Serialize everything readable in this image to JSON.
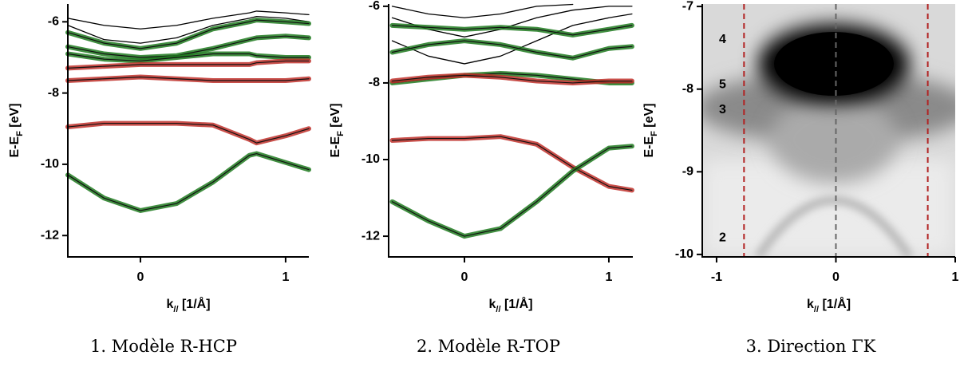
{
  "chart_data": [
    {
      "type": "line",
      "caption": "1. Modèle R-HCP",
      "xlabel": {
        "text": "k",
        "sub": "//",
        "unit": " [1/Å]"
      },
      "ylabel": {
        "text": "E-E",
        "sub": "F",
        "unit": " [eV]"
      },
      "xlim": [
        -0.5,
        1.16
      ],
      "ylim": [
        -12.6,
        -5.5
      ],
      "xticks": [
        0,
        1
      ],
      "yticks": [
        -12,
        -10,
        -8,
        -6
      ],
      "x": [
        -0.5,
        -0.25,
        0,
        0.25,
        0.5,
        0.75,
        0.8,
        1,
        1.16
      ],
      "series": [
        {
          "color": "#000000",
          "style": "thin",
          "values": [
            -5.9,
            -6.1,
            -6.2,
            -6.1,
            -5.9,
            -5.75,
            -5.7,
            -5.75,
            -5.8
          ]
        },
        {
          "color": "#000000",
          "style": "thin",
          "values": [
            -6.1,
            -6.5,
            -6.6,
            -6.45,
            -6.1,
            -5.9,
            -5.85,
            -5.9,
            -6.0
          ]
        },
        {
          "color": "#1e7a1e",
          "style": "thick",
          "values": [
            -6.3,
            -6.6,
            -6.75,
            -6.6,
            -6.2,
            -6.0,
            -5.95,
            -6.0,
            -6.05
          ]
        },
        {
          "color": "#1e7a1e",
          "style": "thick",
          "values": [
            -6.7,
            -6.9,
            -7.0,
            -6.95,
            -6.75,
            -6.5,
            -6.45,
            -6.4,
            -6.45
          ]
        },
        {
          "color": "#1e7a1e",
          "style": "thick",
          "values": [
            -6.9,
            -7.05,
            -7.1,
            -7.0,
            -6.9,
            -6.9,
            -6.95,
            -7.0,
            -7.0
          ]
        },
        {
          "color": "#c0302a",
          "style": "thick",
          "values": [
            -7.3,
            -7.25,
            -7.2,
            -7.2,
            -7.2,
            -7.2,
            -7.15,
            -7.1,
            -7.1
          ]
        },
        {
          "color": "#c0302a",
          "style": "thick",
          "values": [
            -7.65,
            -7.6,
            -7.55,
            -7.6,
            -7.65,
            -7.65,
            -7.65,
            -7.65,
            -7.6
          ]
        },
        {
          "color": "#c0302a",
          "style": "thick",
          "values": [
            -8.95,
            -8.85,
            -8.85,
            -8.85,
            -8.9,
            -9.3,
            -9.4,
            -9.2,
            -9.0
          ]
        },
        {
          "color": "#1e7a1e",
          "style": "thick",
          "values": [
            -10.3,
            -10.95,
            -11.3,
            -11.1,
            -10.5,
            -9.75,
            -9.7,
            -9.95,
            -10.15
          ]
        }
      ]
    },
    {
      "type": "line",
      "caption": "2. Modèle R-TOP",
      "xlabel": {
        "text": "k",
        "sub": "//",
        "unit": " [1/Å]"
      },
      "ylabel": {
        "text": "E-E",
        "sub": "F",
        "unit": " [eV]"
      },
      "xlim": [
        -0.525,
        1.166
      ],
      "ylim": [
        -12.54,
        -5.94
      ],
      "xticks": [
        0,
        1
      ],
      "yticks": [
        -12,
        -10,
        -8,
        -6
      ],
      "x": [
        -0.5,
        -0.25,
        0,
        0.25,
        0.5,
        0.75,
        1,
        1.16
      ],
      "series": [
        {
          "color": "#000000",
          "style": "thin",
          "values": [
            -6.0,
            -6.2,
            -6.3,
            -6.2,
            -6.0,
            -5.95,
            null,
            null
          ]
        },
        {
          "color": "#000000",
          "style": "thin",
          "values": [
            -6.3,
            -6.6,
            -6.8,
            -6.6,
            -6.3,
            -6.1,
            -6.0,
            -6.0
          ]
        },
        {
          "color": "#000000",
          "style": "thin",
          "values": [
            -6.9,
            -7.3,
            -7.5,
            -7.3,
            -6.9,
            -6.5,
            -6.3,
            -6.2
          ]
        },
        {
          "color": "#1e7a1e",
          "style": "thick",
          "values": [
            -6.5,
            -6.55,
            -6.6,
            -6.55,
            -6.6,
            -6.75,
            -6.6,
            -6.5
          ]
        },
        {
          "color": "#1e7a1e",
          "style": "thick",
          "values": [
            -7.2,
            -7.0,
            -6.9,
            -7.0,
            -7.2,
            -7.35,
            -7.1,
            -7.05
          ]
        },
        {
          "color": "#1e7a1e",
          "style": "thick",
          "values": [
            -8.0,
            -7.9,
            -7.8,
            -7.75,
            -7.8,
            -7.9,
            -8.0,
            -8.0
          ]
        },
        {
          "color": "#c0302a",
          "style": "thick",
          "values": [
            -7.95,
            -7.85,
            -7.8,
            -7.85,
            -7.95,
            -8.0,
            -7.95,
            -7.95
          ]
        },
        {
          "color": "#c0302a",
          "style": "thick",
          "values": [
            -9.5,
            -9.45,
            -9.45,
            -9.4,
            -9.6,
            -10.2,
            -10.7,
            -10.8
          ]
        },
        {
          "color": "#1e7a1e",
          "style": "thick",
          "values": [
            -11.1,
            -11.6,
            -12.0,
            -11.8,
            -11.1,
            -10.3,
            -9.7,
            -9.65
          ]
        }
      ]
    },
    {
      "type": "image",
      "caption": "3. Direction ΓK",
      "xlabel": {
        "text": "k",
        "sub": "//",
        "unit": " [1/Å]"
      },
      "ylabel": {
        "text": "E-E",
        "sub": "F",
        "unit": " [eV]"
      },
      "xlim": [
        -1.12,
        1.0
      ],
      "ylim": [
        -10.03,
        -6.97
      ],
      "xticks": [
        -1,
        0,
        1
      ],
      "yticks": [
        -10,
        -9,
        -8,
        -7
      ],
      "vlines": [
        {
          "value": -0.77,
          "color": "#b22222"
        },
        {
          "value": 0,
          "color": "#666666"
        },
        {
          "value": 0.77,
          "color": "#b22222"
        }
      ],
      "annotations": [
        {
          "text": "4",
          "x": -0.95,
          "y": -7.4
        },
        {
          "text": "5",
          "x": -0.95,
          "y": -7.95
        },
        {
          "text": "3",
          "x": -0.95,
          "y": -8.25
        },
        {
          "text": "2",
          "x": -0.95,
          "y": -9.8
        }
      ]
    }
  ]
}
